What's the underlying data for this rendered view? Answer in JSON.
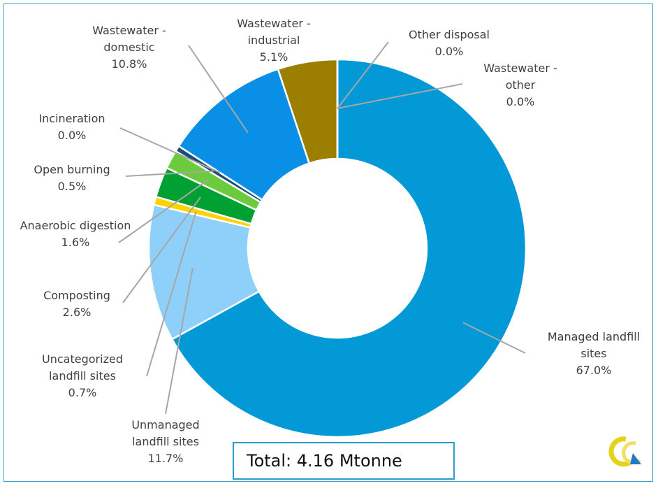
{
  "chart_data": {
    "type": "donut",
    "categories": [
      "Managed landfill sites",
      "Unmanaged landfill sites",
      "Uncategorized landfill sites",
      "Composting",
      "Anaerobic digestion",
      "Open burning",
      "Incineration",
      "Wastewater - domestic",
      "Wastewater - industrial",
      "Other disposal",
      "Wastewater - other"
    ],
    "values": [
      67.0,
      11.7,
      0.7,
      2.6,
      1.6,
      0.5,
      0.0,
      10.8,
      5.1,
      0.0,
      0.0
    ],
    "value_labels": [
      "67.0%",
      "11.7%",
      "0.7%",
      "2.6%",
      "1.6%",
      "0.5%",
      "0.0%",
      "10.8%",
      "5.1%",
      "0.0%",
      "0.0%"
    ],
    "colors": [
      "#0399d6",
      "#8ed0fa",
      "#ffd200",
      "#00a033",
      "#6ccb3c",
      "#1b4f78",
      "#888888",
      "#0a8fe6",
      "#9c7e00",
      "#555555",
      "#bbbbbb"
    ],
    "annotation": "Total: 4.16 Mtonne"
  }
}
